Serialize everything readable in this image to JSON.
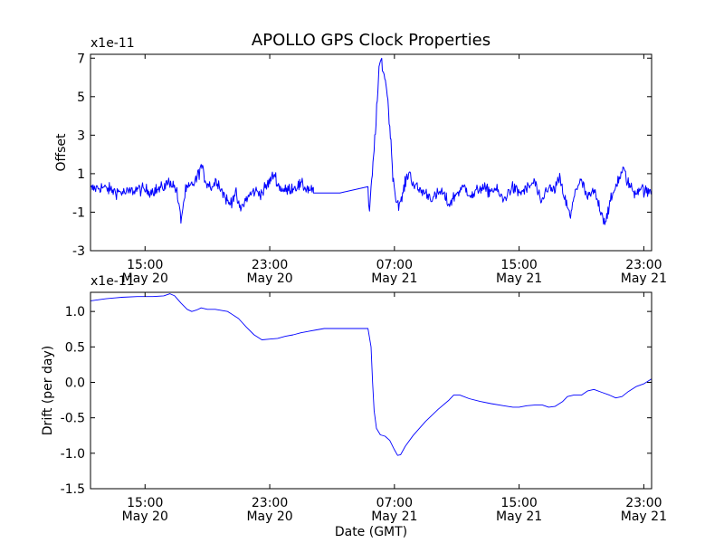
{
  "chart_data": {
    "title": "APOLLO GPS Clock Properties",
    "xlabel": "Date (GMT)",
    "x_unit": "hours since May 20 00:00 GMT",
    "xlim": [
      11.5,
      47.5
    ],
    "x_ticks": [
      {
        "x": 15,
        "time": "15:00",
        "date": "May 20"
      },
      {
        "x": 23,
        "time": "23:00",
        "date": "May 20"
      },
      {
        "x": 31,
        "time": "07:00",
        "date": "May 21"
      },
      {
        "x": 39,
        "time": "15:00",
        "date": "May 21"
      },
      {
        "x": 47,
        "time": "23:00",
        "date": "May 21"
      }
    ],
    "panels": [
      {
        "type": "line",
        "ylabel": "Offset",
        "scale_label": "x1e-11",
        "ylim": [
          -3,
          7.2
        ],
        "y_ticks": [
          -3,
          -1,
          1,
          3,
          5,
          7
        ],
        "y_tick_labels": [
          "-3",
          "-1",
          "1",
          "3",
          "5",
          "7"
        ],
        "color": "#0000ff",
        "noisy": true,
        "series": [
          {
            "name": "offset",
            "points": [
              [
                11.5,
                0.2
              ],
              [
                12.2,
                0.3
              ],
              [
                13.0,
                0.1
              ],
              [
                13.8,
                0.0
              ],
              [
                14.5,
                0.2
              ],
              [
                15.3,
                0.1
              ],
              [
                16.0,
                0.2
              ],
              [
                16.6,
                0.6
              ],
              [
                17.0,
                0.2
              ],
              [
                17.3,
                -1.4
              ],
              [
                17.6,
                0.1
              ],
              [
                18.0,
                0.4
              ],
              [
                18.3,
                0.7
              ],
              [
                18.6,
                1.4
              ],
              [
                18.9,
                0.6
              ],
              [
                19.3,
                0.3
              ],
              [
                19.6,
                0.7
              ],
              [
                20.0,
                0.0
              ],
              [
                20.4,
                -0.6
              ],
              [
                20.8,
                0.0
              ],
              [
                21.1,
                -0.9
              ],
              [
                21.5,
                -0.3
              ],
              [
                22.0,
                0.1
              ],
              [
                22.5,
                0.0
              ],
              [
                23.0,
                0.6
              ],
              [
                23.3,
                1.0
              ],
              [
                23.6,
                0.3
              ],
              [
                24.0,
                0.1
              ],
              [
                24.5,
                0.3
              ],
              [
                25.0,
                0.4
              ],
              [
                25.5,
                0.2
              ],
              [
                25.8,
                0.2
              ],
              [
                25.8,
                0.0
              ],
              [
                27.5,
                0.0
              ],
              [
                29.3,
                0.0
              ],
              [
                29.4,
                -1.0
              ],
              [
                29.5,
                0.1
              ],
              [
                29.7,
                2.3
              ],
              [
                29.9,
                4.8
              ],
              [
                30.05,
                6.7
              ],
              [
                30.15,
                6.9
              ],
              [
                30.3,
                6.3
              ],
              [
                30.5,
                5.5
              ],
              [
                30.7,
                3.5
              ],
              [
                30.9,
                1.0
              ],
              [
                31.1,
                -0.4
              ],
              [
                31.4,
                -0.6
              ],
              [
                31.6,
                0.2
              ],
              [
                31.8,
                0.8
              ],
              [
                31.95,
                1.1
              ],
              [
                32.2,
                0.5
              ],
              [
                32.5,
                0.2
              ],
              [
                33.0,
                0.0
              ],
              [
                33.5,
                -0.3
              ],
              [
                34.0,
                0.1
              ],
              [
                34.5,
                -0.6
              ],
              [
                35.0,
                0.0
              ],
              [
                35.5,
                0.3
              ],
              [
                36.0,
                -0.2
              ],
              [
                36.5,
                0.3
              ],
              [
                37.0,
                0.1
              ],
              [
                37.5,
                0.2
              ],
              [
                38.0,
                -0.4
              ],
              [
                38.5,
                0.3
              ],
              [
                39.0,
                0.0
              ],
              [
                39.5,
                0.2
              ],
              [
                40.0,
                0.6
              ],
              [
                40.4,
                -0.6
              ],
              [
                40.8,
                0.3
              ],
              [
                41.2,
                0.1
              ],
              [
                41.6,
                0.7
              ],
              [
                42.0,
                -0.5
              ],
              [
                42.3,
                -1.3
              ],
              [
                42.6,
                0.2
              ],
              [
                43.0,
                0.6
              ],
              [
                43.4,
                -0.3
              ],
              [
                43.8,
                0.1
              ],
              [
                44.2,
                -0.8
              ],
              [
                44.5,
                -1.5
              ],
              [
                44.9,
                -0.4
              ],
              [
                45.3,
                0.6
              ],
              [
                45.7,
                1.2
              ],
              [
                46.0,
                0.5
              ],
              [
                46.4,
                0.0
              ],
              [
                46.8,
                0.3
              ],
              [
                47.2,
                0.0
              ],
              [
                47.5,
                0.1
              ]
            ]
          }
        ]
      },
      {
        "type": "line",
        "ylabel": "Drift (per day)",
        "scale_label": "x1e-11",
        "ylim": [
          -1.5,
          1.27
        ],
        "y_ticks": [
          -1.5,
          -1.0,
          -0.5,
          0.0,
          0.5,
          1.0
        ],
        "y_tick_labels": [
          "-1.5",
          "-1.0",
          "-0.5",
          "0.0",
          "0.5",
          "1.0"
        ],
        "color": "#0000ff",
        "noisy": false,
        "series": [
          {
            "name": "drift",
            "points": [
              [
                11.5,
                1.15
              ],
              [
                12.5,
                1.18
              ],
              [
                13.5,
                1.2
              ],
              [
                14.5,
                1.21
              ],
              [
                15.5,
                1.21
              ],
              [
                16.2,
                1.22
              ],
              [
                16.6,
                1.25
              ],
              [
                16.9,
                1.22
              ],
              [
                17.3,
                1.12
              ],
              [
                17.7,
                1.03
              ],
              [
                18.0,
                1.0
              ],
              [
                18.3,
                1.02
              ],
              [
                18.6,
                1.05
              ],
              [
                19.0,
                1.03
              ],
              [
                19.5,
                1.03
              ],
              [
                20.3,
                1.0
              ],
              [
                21.0,
                0.9
              ],
              [
                21.5,
                0.78
              ],
              [
                22.0,
                0.67
              ],
              [
                22.5,
                0.6
              ],
              [
                23.0,
                0.61
              ],
              [
                23.5,
                0.62
              ],
              [
                24.0,
                0.65
              ],
              [
                24.5,
                0.67
              ],
              [
                25.0,
                0.7
              ],
              [
                25.5,
                0.72
              ],
              [
                26.0,
                0.74
              ],
              [
                26.5,
                0.76
              ],
              [
                27.5,
                0.76
              ],
              [
                29.3,
                0.76
              ],
              [
                29.5,
                0.5
              ],
              [
                29.6,
                0.0
              ],
              [
                29.7,
                -0.4
              ],
              [
                29.85,
                -0.65
              ],
              [
                30.1,
                -0.74
              ],
              [
                30.4,
                -0.76
              ],
              [
                30.7,
                -0.82
              ],
              [
                31.0,
                -0.95
              ],
              [
                31.2,
                -1.03
              ],
              [
                31.4,
                -1.02
              ],
              [
                31.7,
                -0.9
              ],
              [
                32.2,
                -0.75
              ],
              [
                33.0,
                -0.55
              ],
              [
                33.8,
                -0.38
              ],
              [
                34.5,
                -0.25
              ],
              [
                34.8,
                -0.18
              ],
              [
                35.2,
                -0.18
              ],
              [
                35.8,
                -0.23
              ],
              [
                36.5,
                -0.27
              ],
              [
                37.2,
                -0.3
              ],
              [
                38.0,
                -0.33
              ],
              [
                38.6,
                -0.35
              ],
              [
                39.0,
                -0.35
              ],
              [
                39.5,
                -0.33
              ],
              [
                40.0,
                -0.32
              ],
              [
                40.5,
                -0.32
              ],
              [
                40.9,
                -0.35
              ],
              [
                41.3,
                -0.34
              ],
              [
                41.8,
                -0.27
              ],
              [
                42.1,
                -0.2
              ],
              [
                42.5,
                -0.18
              ],
              [
                43.0,
                -0.18
              ],
              [
                43.4,
                -0.12
              ],
              [
                43.8,
                -0.1
              ],
              [
                44.3,
                -0.14
              ],
              [
                44.8,
                -0.18
              ],
              [
                45.2,
                -0.22
              ],
              [
                45.6,
                -0.2
              ],
              [
                46.0,
                -0.13
              ],
              [
                46.5,
                -0.06
              ],
              [
                47.0,
                -0.02
              ],
              [
                47.5,
                0.05
              ]
            ]
          }
        ]
      }
    ]
  }
}
